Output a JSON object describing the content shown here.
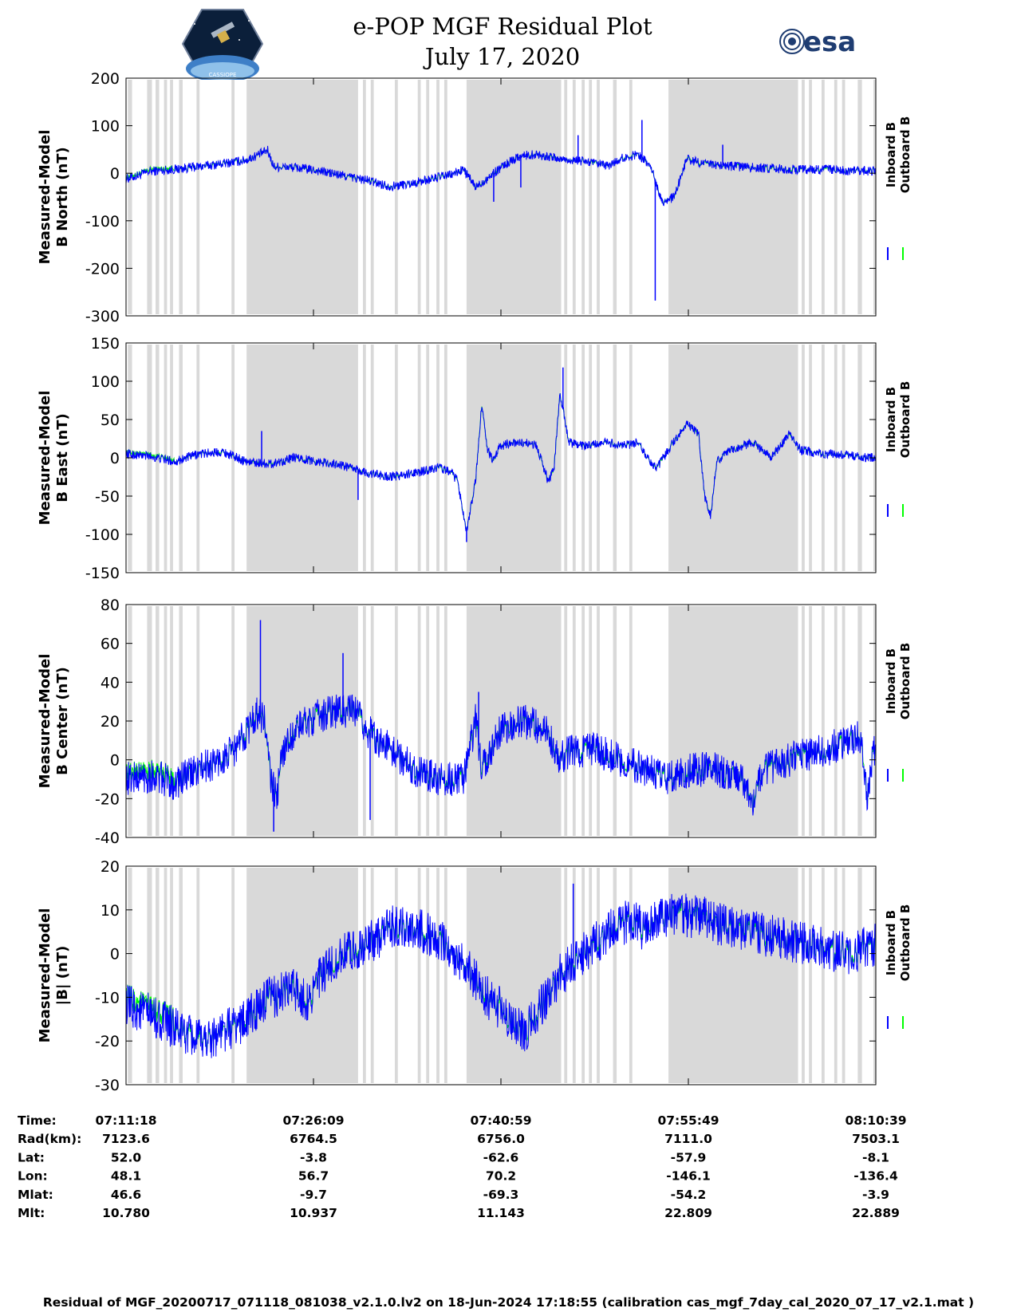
{
  "title": "e-POP MGF Residual Plot",
  "subtitle": "July 17, 2020",
  "logos": {
    "left_logo_text": "CASSIOPE",
    "right_logo_text": "esa"
  },
  "footer": "Residual of MGF_20200717_071118_081038_v2.1.0.lv2 on 18-Jun-2024 17:18:55 (calibration cas_mgf_7day_cal_2020_07_17_v2.1.mat )",
  "colors": {
    "inboard": "#0000ff",
    "outboard": "#00ff00",
    "gap_shading": "#d9d9d9"
  },
  "chart_data": [
    {
      "type": "line",
      "ylabel": [
        "Measured-Model",
        "B North (nT)"
      ],
      "ylim": [
        -300,
        200
      ],
      "yticks": [
        -300,
        -200,
        -100,
        0,
        100,
        200
      ],
      "legend": [
        "Inboard B",
        "Outboard B"
      ],
      "legend_position": "right",
      "x_range_minutes": [
        0,
        59.35
      ],
      "baseline": [
        [
          0,
          -12
        ],
        [
          2,
          -5
        ],
        [
          4,
          4
        ],
        [
          8,
          8
        ],
        [
          12,
          14
        ],
        [
          16,
          20
        ],
        [
          20,
          28
        ],
        [
          23.5,
          48
        ],
        [
          24.5,
          14
        ],
        [
          28,
          12
        ],
        [
          32,
          5
        ],
        [
          36,
          -5
        ],
        [
          40,
          -15
        ],
        [
          44,
          -28
        ],
        [
          48,
          -20
        ],
        [
          52,
          -8
        ],
        [
          54,
          -3
        ],
        [
          56,
          8
        ],
        [
          58,
          -30
        ],
        [
          60,
          -10
        ],
        [
          62,
          10
        ],
        [
          65,
          35
        ],
        [
          68,
          40
        ],
        [
          72,
          30
        ],
        [
          76,
          25
        ],
        [
          80,
          15
        ],
        [
          82,
          30
        ],
        [
          85,
          40
        ],
        [
          87,
          15
        ],
        [
          89,
          -60
        ],
        [
          91,
          -50
        ],
        [
          93,
          30
        ],
        [
          96,
          20
        ],
        [
          100,
          15
        ],
        [
          104,
          12
        ],
        [
          110,
          8
        ],
        [
          116,
          8
        ],
        [
          120,
          5
        ],
        [
          124,
          5
        ]
      ],
      "noise": 10,
      "spikes": [
        [
          87.8,
          -268
        ],
        [
          85.6,
          112
        ],
        [
          75,
          80
        ],
        [
          65.5,
          -30
        ],
        [
          99,
          60
        ],
        [
          61,
          -60
        ]
      ]
    },
    {
      "type": "line",
      "ylabel": [
        "Measured-Model",
        "B East (nT)"
      ],
      "ylim": [
        -150,
        150
      ],
      "yticks": [
        -150,
        -100,
        -50,
        0,
        50,
        100,
        150
      ],
      "legend": [
        "Inboard B",
        "Outboard B"
      ],
      "legend_position": "right",
      "x_range_minutes": [
        0,
        59.35
      ],
      "baseline": [
        [
          0,
          5
        ],
        [
          4,
          2
        ],
        [
          8,
          -5
        ],
        [
          12,
          5
        ],
        [
          16,
          8
        ],
        [
          20,
          -5
        ],
        [
          24,
          -8
        ],
        [
          28,
          0
        ],
        [
          32,
          -5
        ],
        [
          36,
          -10
        ],
        [
          40,
          -20
        ],
        [
          44,
          -25
        ],
        [
          48,
          -20
        ],
        [
          52,
          -12
        ],
        [
          54,
          -20
        ],
        [
          55,
          -30
        ],
        [
          56.5,
          -95
        ],
        [
          58,
          -30
        ],
        [
          59,
          70
        ],
        [
          60,
          10
        ],
        [
          61,
          -5
        ],
        [
          62,
          15
        ],
        [
          64,
          20
        ],
        [
          68,
          18
        ],
        [
          70,
          -30
        ],
        [
          71,
          -15
        ],
        [
          72,
          85
        ],
        [
          73.5,
          20
        ],
        [
          76,
          15
        ],
        [
          80,
          20
        ],
        [
          82,
          15
        ],
        [
          85,
          20
        ],
        [
          86,
          5
        ],
        [
          88,
          -15
        ],
        [
          90,
          10
        ],
        [
          93,
          45
        ],
        [
          95,
          30
        ],
        [
          96,
          -50
        ],
        [
          97,
          -75
        ],
        [
          98,
          -5
        ],
        [
          100,
          10
        ],
        [
          104,
          20
        ],
        [
          107,
          0
        ],
        [
          110,
          30
        ],
        [
          112,
          10
        ],
        [
          116,
          5
        ],
        [
          120,
          3
        ],
        [
          124,
          0
        ]
      ],
      "noise": 6,
      "spikes": [
        [
          22.5,
          35
        ],
        [
          72.5,
          118
        ],
        [
          56.5,
          -110
        ],
        [
          38.5,
          -55
        ]
      ]
    },
    {
      "type": "line",
      "ylabel": [
        "Measured-Model",
        "B Center (nT)"
      ],
      "ylim": [
        -40,
        80
      ],
      "yticks": [
        -40,
        -20,
        0,
        20,
        40,
        60,
        80
      ],
      "legend": [
        "Inboard B",
        "Outboard B"
      ],
      "legend_position": "right",
      "x_range_minutes": [
        0,
        59.35
      ],
      "baseline": [
        [
          0,
          -10
        ],
        [
          4,
          -8
        ],
        [
          8,
          -12
        ],
        [
          12,
          -5
        ],
        [
          16,
          0
        ],
        [
          18,
          5
        ],
        [
          20,
          15
        ],
        [
          22,
          25
        ],
        [
          23,
          20
        ],
        [
          24,
          -10
        ],
        [
          25,
          -20
        ],
        [
          26,
          5
        ],
        [
          28,
          15
        ],
        [
          30,
          20
        ],
        [
          34,
          25
        ],
        [
          38,
          25
        ],
        [
          40,
          15
        ],
        [
          44,
          5
        ],
        [
          48,
          -5
        ],
        [
          52,
          -10
        ],
        [
          56,
          -10
        ],
        [
          58,
          20
        ],
        [
          59,
          -5
        ],
        [
          62,
          15
        ],
        [
          66,
          20
        ],
        [
          70,
          15
        ],
        [
          72,
          0
        ],
        [
          74,
          5
        ],
        [
          78,
          5
        ],
        [
          82,
          0
        ],
        [
          86,
          -5
        ],
        [
          90,
          -10
        ],
        [
          94,
          -5
        ],
        [
          98,
          -5
        ],
        [
          102,
          -10
        ],
        [
          104,
          -20
        ],
        [
          106,
          -5
        ],
        [
          110,
          0
        ],
        [
          116,
          5
        ],
        [
          120,
          10
        ],
        [
          122,
          12
        ],
        [
          123,
          -20
        ],
        [
          124,
          5
        ]
      ],
      "noise": 9,
      "spikes": [
        [
          22.3,
          72
        ],
        [
          24.5,
          -37
        ],
        [
          40.5,
          -31
        ],
        [
          36,
          55
        ],
        [
          58.5,
          35
        ]
      ]
    },
    {
      "type": "line",
      "ylabel": [
        "Measured-Model",
        "|B| (nT)"
      ],
      "ylim": [
        -30,
        20
      ],
      "yticks": [
        -30,
        -20,
        -10,
        0,
        10,
        20
      ],
      "legend": [
        "Inboard B",
        "Outboard B"
      ],
      "legend_position": "right",
      "x_range_minutes": [
        0,
        59.35
      ],
      "baseline": [
        [
          0,
          -12
        ],
        [
          4,
          -14
        ],
        [
          8,
          -17
        ],
        [
          12,
          -20
        ],
        [
          16,
          -18
        ],
        [
          20,
          -15
        ],
        [
          24,
          -10
        ],
        [
          28,
          -8
        ],
        [
          30,
          -11
        ],
        [
          32,
          -6
        ],
        [
          36,
          0
        ],
        [
          40,
          2
        ],
        [
          44,
          6
        ],
        [
          48,
          6
        ],
        [
          52,
          3
        ],
        [
          56,
          -2
        ],
        [
          60,
          -10
        ],
        [
          64,
          -15
        ],
        [
          66,
          -18
        ],
        [
          68,
          -14
        ],
        [
          72,
          -5
        ],
        [
          76,
          0
        ],
        [
          80,
          5
        ],
        [
          84,
          8
        ],
        [
          86,
          5
        ],
        [
          88,
          8
        ],
        [
          92,
          9
        ],
        [
          96,
          8
        ],
        [
          100,
          6
        ],
        [
          104,
          5
        ],
        [
          110,
          3
        ],
        [
          116,
          1
        ],
        [
          120,
          0
        ],
        [
          124,
          2
        ]
      ],
      "noise": 5,
      "spikes": [
        [
          74.2,
          16
        ]
      ]
    }
  ],
  "time_axis": {
    "tick_labels": [
      "07:11:18",
      "07:26:09",
      "07:40:59",
      "07:55:49",
      "08:10:39"
    ],
    "rows": [
      {
        "label": "Time:",
        "values": [
          "07:11:18",
          "07:26:09",
          "07:40:59",
          "07:55:49",
          "08:10:39"
        ]
      },
      {
        "label": "Rad(km):",
        "values": [
          "7123.6",
          "6764.5",
          "6756.0",
          "7111.0",
          "7503.1"
        ]
      },
      {
        "label": "Lat:",
        "values": [
          "52.0",
          "-3.8",
          "-62.6",
          "-57.9",
          "-8.1"
        ]
      },
      {
        "label": "Lon:",
        "values": [
          "48.1",
          "56.7",
          "70.2",
          "-146.1",
          "-136.4"
        ]
      },
      {
        "label": "Mlat:",
        "values": [
          "46.6",
          "-9.7",
          "-69.3",
          "-54.2",
          "-3.9"
        ]
      },
      {
        "label": "Mlt:",
        "values": [
          "10.780",
          "10.937",
          "11.143",
          "22.809",
          "22.889"
        ]
      }
    ]
  },
  "gap_blocks": [
    [
      0.3,
      1
    ],
    [
      3.5,
      4.3
    ],
    [
      4.9,
      5.5
    ],
    [
      6.3,
      6.8
    ],
    [
      7.3,
      7.8
    ],
    [
      8.8,
      9.4
    ],
    [
      11.7,
      12.2
    ],
    [
      17.5,
      18
    ],
    [
      20,
      38.5
    ],
    [
      39.3,
      39.8
    ],
    [
      40.6,
      41.1
    ],
    [
      44.6,
      45.1
    ],
    [
      48.4,
      48.9
    ],
    [
      49.8,
      50.3
    ],
    [
      51.5,
      52
    ],
    [
      52.8,
      53.3
    ],
    [
      56.5,
      72.2
    ],
    [
      72.7,
      73.2
    ],
    [
      74.1,
      74.6
    ],
    [
      75.6,
      76.1
    ],
    [
      76.8,
      77.3
    ],
    [
      78.1,
      78.6
    ],
    [
      80.8,
      81.4
    ],
    [
      83.5,
      84
    ],
    [
      90,
      111.5
    ],
    [
      112.1,
      112.6
    ],
    [
      113.3,
      113.8
    ],
    [
      115.4,
      115.9
    ],
    [
      117.5,
      118
    ],
    [
      118.8,
      119.3
    ],
    [
      121.4,
      122.1
    ],
    [
      124,
      124.4
    ]
  ]
}
